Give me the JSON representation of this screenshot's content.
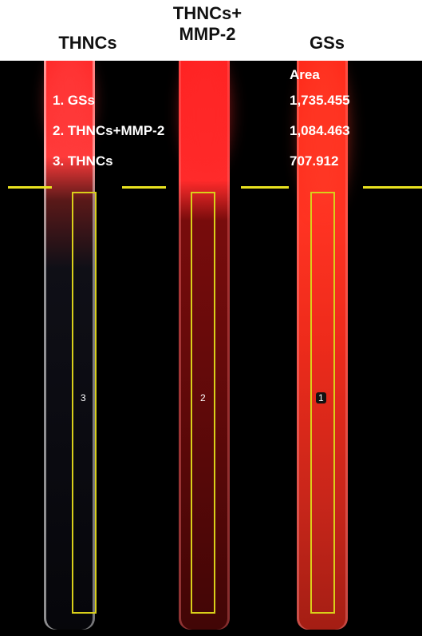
{
  "headers": [
    "THNCs",
    "THNCs+\nMMP-2",
    "GSs"
  ],
  "area_header": "Area",
  "legend": [
    {
      "label": "1. GSs",
      "area": "1,735.455"
    },
    {
      "label": "2. THNCs+MMP-2",
      "area": "1,084.463"
    },
    {
      "label": "3. THNCs",
      "area": "707.912"
    }
  ],
  "roi_numbers": [
    "3",
    "2",
    "1"
  ],
  "colors": {
    "roi_outline": "#d9cf1a",
    "cutline": "#e9e220",
    "background": "#000000",
    "label_text": "#ffffff"
  }
}
